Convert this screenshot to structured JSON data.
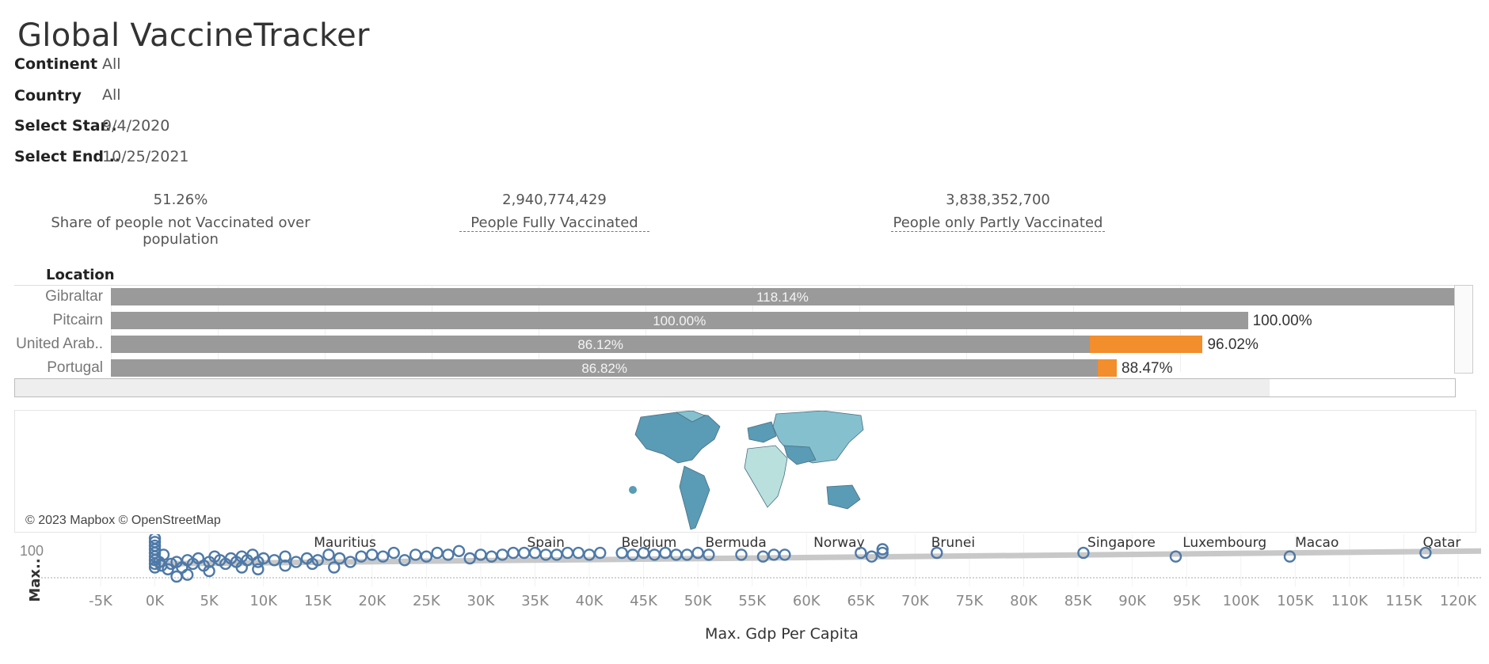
{
  "title": "Global VaccineTracker",
  "filters": [
    {
      "label": "Continent",
      "value": "All"
    },
    {
      "label": "Country",
      "value": "All"
    },
    {
      "label": "Select Star..",
      "value": "9/4/2020"
    },
    {
      "label": "Select End ..",
      "value": "10/25/2021"
    }
  ],
  "kpis": {
    "not_vaccinated": {
      "value": "51.26%",
      "label": "Share of people not Vaccinated over population"
    },
    "fully": {
      "value": "2,940,774,429",
      "label": "People Fully Vaccinated"
    },
    "partly": {
      "value": "3,838,352,700",
      "label": "People only Partly Vaccinated"
    }
  },
  "bar_chart": {
    "header": "Location",
    "max_value": 118.14,
    "rows": [
      {
        "location": "Gibraltar",
        "full": 118.14,
        "full_label": "118.14%",
        "total": 118.14,
        "total_label": ""
      },
      {
        "location": "Pitcairn",
        "full": 100.0,
        "full_label": "100.00%",
        "total": 100.0,
        "total_label": "100.00%"
      },
      {
        "location": "United Arab..",
        "full": 86.12,
        "full_label": "86.12%",
        "total": 96.02,
        "total_label": "96.02%"
      },
      {
        "location": "Portugal",
        "full": 86.82,
        "full_label": "86.82%",
        "total": 88.47,
        "total_label": "88.47%"
      }
    ],
    "colors": {
      "full": "#9a9a9a",
      "partial": "#f28e2b"
    }
  },
  "map": {
    "credit": "© 2023 Mapbox © OpenStreetMap",
    "colors": {
      "dark": "#5a9bb5",
      "mid": "#85c0cf",
      "light": "#b9e0dd"
    }
  },
  "chart_data": {
    "type": "scatter",
    "xlabel": "Max. Gdp Per Capita",
    "ylabel": "Max..",
    "xlim": [
      -6000,
      124000
    ],
    "x_ticks": [
      "-5K",
      "0K",
      "5K",
      "10K",
      "15K",
      "20K",
      "25K",
      "30K",
      "35K",
      "40K",
      "45K",
      "50K",
      "55K",
      "60K",
      "65K",
      "70K",
      "75K",
      "80K",
      "85K",
      "90K",
      "95K",
      "100K",
      "105K",
      "110K",
      "115K",
      "120K"
    ],
    "x_tick_values": [
      -5000,
      0,
      5000,
      10000,
      15000,
      20000,
      25000,
      30000,
      35000,
      40000,
      45000,
      50000,
      55000,
      60000,
      65000,
      70000,
      75000,
      80000,
      85000,
      90000,
      95000,
      100000,
      105000,
      110000,
      115000,
      120000
    ],
    "y_ticks": [
      "100"
    ],
    "annotations": [
      {
        "text": "Mauritius",
        "x": 17500
      },
      {
        "text": "Spain",
        "x": 36000
      },
      {
        "text": "Belgium",
        "x": 45500
      },
      {
        "text": "Bermuda",
        "x": 53500
      },
      {
        "text": "Norway",
        "x": 63000
      },
      {
        "text": "Brunei",
        "x": 73500
      },
      {
        "text": "Singapore",
        "x": 89000
      },
      {
        "text": "Luxembourg",
        "x": 98500
      },
      {
        "text": "Macao",
        "x": 107000
      },
      {
        "text": "Qatar",
        "x": 118500
      }
    ],
    "points": [
      [
        0,
        88
      ],
      [
        0,
        92
      ],
      [
        0,
        96
      ],
      [
        0,
        100
      ],
      [
        0,
        104
      ],
      [
        0,
        108
      ],
      [
        0,
        112
      ],
      [
        0,
        84
      ],
      [
        0,
        80
      ],
      [
        400,
        86
      ],
      [
        600,
        82
      ],
      [
        800,
        94
      ],
      [
        1200,
        78
      ],
      [
        1500,
        84
      ],
      [
        2000,
        86
      ],
      [
        2500,
        80
      ],
      [
        3000,
        88
      ],
      [
        3500,
        84
      ],
      [
        4000,
        90
      ],
      [
        4500,
        82
      ],
      [
        5000,
        86
      ],
      [
        5500,
        92
      ],
      [
        6000,
        88
      ],
      [
        6500,
        84
      ],
      [
        7000,
        90
      ],
      [
        7500,
        86
      ],
      [
        8000,
        92
      ],
      [
        8500,
        88
      ],
      [
        9000,
        94
      ],
      [
        9500,
        86
      ],
      [
        10000,
        90
      ],
      [
        11000,
        88
      ],
      [
        12000,
        92
      ],
      [
        13000,
        86
      ],
      [
        14000,
        90
      ],
      [
        15000,
        88
      ],
      [
        16000,
        94
      ],
      [
        17000,
        90
      ],
      [
        18000,
        86
      ],
      [
        19000,
        92
      ],
      [
        20000,
        94
      ],
      [
        21000,
        92
      ],
      [
        22000,
        96
      ],
      [
        23000,
        88
      ],
      [
        24000,
        94
      ],
      [
        25000,
        92
      ],
      [
        26000,
        96
      ],
      [
        27000,
        94
      ],
      [
        28000,
        98
      ],
      [
        29000,
        90
      ],
      [
        30000,
        94
      ],
      [
        31000,
        92
      ],
      [
        32000,
        94
      ],
      [
        33000,
        96
      ],
      [
        34000,
        96
      ],
      [
        35000,
        96
      ],
      [
        36000,
        94
      ],
      [
        37000,
        94
      ],
      [
        38000,
        96
      ],
      [
        39000,
        96
      ],
      [
        40000,
        94
      ],
      [
        41000,
        96
      ],
      [
        43000,
        96
      ],
      [
        44000,
        94
      ],
      [
        45000,
        96
      ],
      [
        46000,
        94
      ],
      [
        47000,
        96
      ],
      [
        48000,
        94
      ],
      [
        49000,
        94
      ],
      [
        50000,
        96
      ],
      [
        51000,
        94
      ],
      [
        54000,
        94
      ],
      [
        56000,
        92
      ],
      [
        57000,
        94
      ],
      [
        58000,
        94
      ],
      [
        65000,
        96
      ],
      [
        66000,
        92
      ],
      [
        67000,
        100
      ],
      [
        67000,
        96
      ],
      [
        72000,
        96
      ],
      [
        85500,
        96
      ],
      [
        94000,
        92
      ],
      [
        104500,
        92
      ],
      [
        117000,
        96
      ],
      [
        3000,
        72
      ],
      [
        5000,
        76
      ],
      [
        8000,
        80
      ],
      [
        12000,
        82
      ],
      [
        14500,
        84
      ],
      [
        2000,
        70
      ],
      [
        9500,
        78
      ],
      [
        16500,
        80
      ]
    ],
    "trend": {
      "from": [
        0,
        84
      ],
      "to": [
        124000,
        98
      ]
    },
    "colors": {
      "point": "#4e79a7",
      "trend": "#c8c8c8"
    }
  }
}
